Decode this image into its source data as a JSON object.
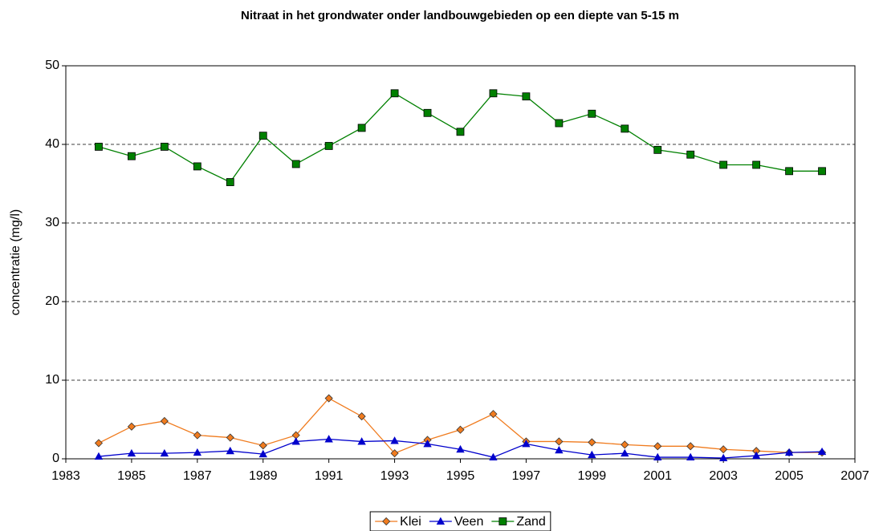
{
  "chart_data": {
    "type": "line",
    "title": "Nitraat in het grondwater onder landbouwgebieden op een diepte van 5-15 m",
    "y_label": "concentratie (mg/l)",
    "x": [
      1984,
      1985,
      1986,
      1987,
      1988,
      1989,
      1990,
      1991,
      1992,
      1993,
      1994,
      1995,
      1996,
      1997,
      1998,
      1999,
      2000,
      2001,
      2002,
      2003,
      2004,
      2005,
      2006
    ],
    "series": [
      {
        "name": "Klei",
        "color": "#f07b1e",
        "marker": "diamond",
        "values": [
          2.0,
          4.1,
          4.8,
          3.0,
          2.7,
          1.7,
          3.0,
          7.7,
          5.4,
          0.7,
          2.4,
          3.7,
          5.7,
          2.2,
          2.2,
          2.1,
          1.8,
          1.6,
          1.6,
          1.2,
          1.0,
          0.8,
          0.8
        ]
      },
      {
        "name": "Veen",
        "color": "#0000cc",
        "marker": "triangle",
        "values": [
          0.3,
          0.7,
          0.7,
          0.8,
          1.0,
          0.6,
          2.2,
          2.5,
          2.2,
          2.3,
          1.9,
          1.2,
          0.2,
          1.9,
          1.1,
          0.5,
          0.7,
          0.2,
          0.2,
          0.1,
          0.4,
          0.8,
          0.9
        ]
      },
      {
        "name": "Zand",
        "color": "#008000",
        "marker": "square",
        "values": [
          39.7,
          38.5,
          39.7,
          37.2,
          35.2,
          41.1,
          37.5,
          39.8,
          42.1,
          46.5,
          44.0,
          41.6,
          46.5,
          46.1,
          42.7,
          43.9,
          42.0,
          39.3,
          38.7,
          37.4,
          37.4,
          36.6,
          36.6
        ]
      }
    ],
    "xlim": [
      1983,
      2007
    ],
    "xticks": [
      1983,
      1985,
      1987,
      1989,
      1991,
      1993,
      1995,
      1997,
      1999,
      2001,
      2003,
      2005,
      2007
    ],
    "ylim": [
      0,
      50
    ],
    "yticks": [
      0,
      10,
      20,
      30,
      40,
      50
    ],
    "grid": true,
    "legend": "bottom"
  }
}
